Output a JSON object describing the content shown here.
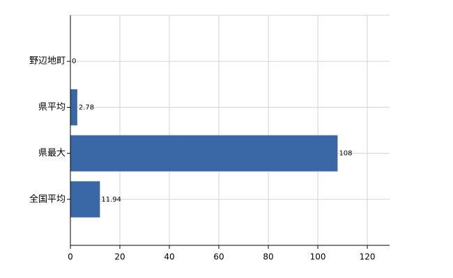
{
  "chart_data": {
    "type": "bar",
    "orientation": "horizontal",
    "categories": [
      "野辺地町",
      "県平均",
      "県最大",
      "全国平均"
    ],
    "values": [
      0,
      2.78,
      108,
      11.94
    ],
    "color": "#3a67a6",
    "xlim": [
      0,
      129
    ],
    "xticks": [
      0,
      20,
      40,
      60,
      80,
      100,
      120
    ],
    "grid": true
  }
}
